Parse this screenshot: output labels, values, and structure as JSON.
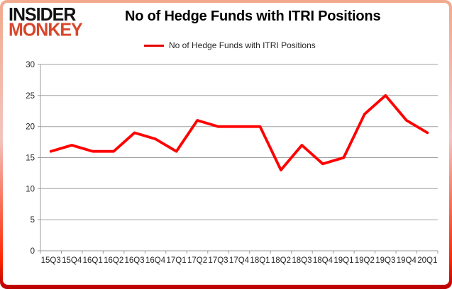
{
  "header": {
    "logo_line1": "INSIDER",
    "logo_line2": "MONKEY",
    "title": "No of Hedge Funds with ITRI Positions"
  },
  "legend": {
    "label": "No of Hedge Funds with ITRI Positions"
  },
  "chart_data": {
    "type": "line",
    "title": "No of Hedge Funds with ITRI Positions",
    "categories": [
      "15Q3",
      "15Q4",
      "16Q1",
      "16Q2",
      "16Q3",
      "16Q4",
      "17Q1",
      "17Q2",
      "17Q3",
      "17Q4",
      "18Q1",
      "18Q2",
      "18Q3",
      "18Q4",
      "19Q1",
      "19Q2",
      "19Q3",
      "19Q4",
      "20Q1"
    ],
    "series": [
      {
        "name": "No of Hedge Funds with ITRI Positions",
        "values": [
          16,
          17,
          16,
          16,
          19,
          18,
          16,
          21,
          20,
          20,
          20,
          13,
          17,
          14,
          15,
          22,
          25,
          21,
          19
        ]
      }
    ],
    "xlabel": "",
    "ylabel": "",
    "ylim": [
      0,
      30
    ],
    "yticks": [
      0,
      5,
      10,
      15,
      20,
      25,
      30
    ],
    "grid": true,
    "legend_position": "top"
  },
  "colors": {
    "line": "#ff0000",
    "legend_marker": "#e60000",
    "gridline": "#a0a0a0",
    "axis": "#9a9a9a",
    "tick_label": "#262626",
    "logo_black": "#121212",
    "logo_red": "#d8472b",
    "border_top": "#f2a98c",
    "border_bottom": "#ff2600"
  }
}
